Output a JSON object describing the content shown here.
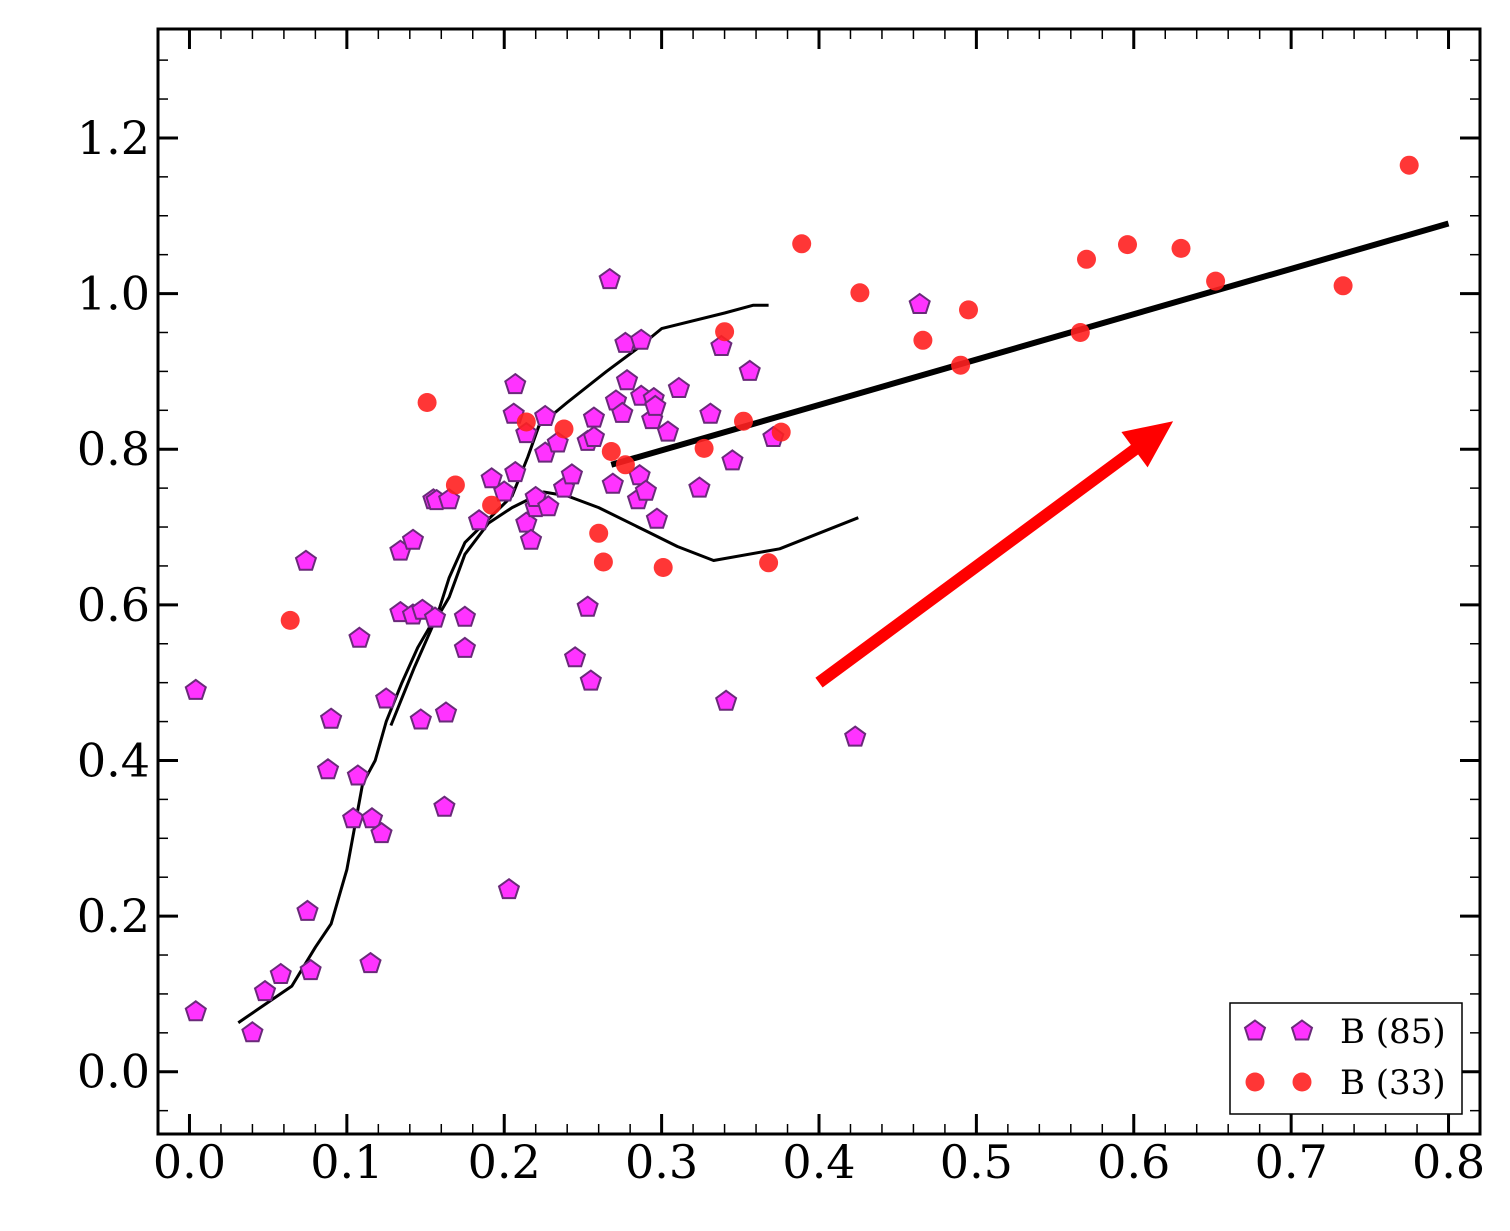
{
  "chart_data": {
    "type": "scatter",
    "xlim": [
      -0.02,
      0.82
    ],
    "ylim": [
      -0.08,
      1.34
    ],
    "x_ticks": [
      0.0,
      0.1,
      0.2,
      0.3,
      0.4,
      0.5,
      0.6,
      0.7,
      0.8
    ],
    "x_tick_labels": [
      "0.0",
      "0.1",
      "0.2",
      "0.3",
      "0.4",
      "0.5",
      "0.6",
      "0.7",
      "0.8"
    ],
    "y_ticks": [
      0.0,
      0.2,
      0.4,
      0.6,
      0.8,
      1.0,
      1.2
    ],
    "y_tick_labels": [
      "0.0",
      "0.2",
      "0.4",
      "0.6",
      "0.8",
      "1.0",
      "1.2"
    ],
    "grid": false,
    "legend_position": "bottom-right",
    "colors": {
      "pentagon_fill": "#ff33ff",
      "pentagon_edge": "#6a2a7a",
      "circle_fill": "#ff2020",
      "line": "#000000",
      "arrow": "#ff0000"
    },
    "series": [
      {
        "name": "B (85)",
        "marker": "pentagon",
        "points": [
          [
            0.004,
            0.49
          ],
          [
            0.004,
            0.077
          ],
          [
            0.04,
            0.05
          ],
          [
            0.048,
            0.103
          ],
          [
            0.058,
            0.125
          ],
          [
            0.074,
            0.656
          ],
          [
            0.075,
            0.206
          ],
          [
            0.077,
            0.13
          ],
          [
            0.088,
            0.388
          ],
          [
            0.09,
            0.453
          ],
          [
            0.104,
            0.325
          ],
          [
            0.107,
            0.38
          ],
          [
            0.108,
            0.557
          ],
          [
            0.115,
            0.139
          ],
          [
            0.116,
            0.325
          ],
          [
            0.122,
            0.306
          ],
          [
            0.125,
            0.479
          ],
          [
            0.134,
            0.669
          ],
          [
            0.134,
            0.59
          ],
          [
            0.142,
            0.587
          ],
          [
            0.142,
            0.683
          ],
          [
            0.147,
            0.452
          ],
          [
            0.148,
            0.593
          ],
          [
            0.155,
            0.735
          ],
          [
            0.156,
            0.583
          ],
          [
            0.157,
            0.734
          ],
          [
            0.162,
            0.34
          ],
          [
            0.163,
            0.461
          ],
          [
            0.165,
            0.735
          ],
          [
            0.175,
            0.584
          ],
          [
            0.175,
            0.544
          ],
          [
            0.184,
            0.708
          ],
          [
            0.192,
            0.762
          ],
          [
            0.2,
            0.745
          ],
          [
            0.203,
            0.234
          ],
          [
            0.206,
            0.845
          ],
          [
            0.207,
            0.883
          ],
          [
            0.207,
            0.77
          ],
          [
            0.214,
            0.705
          ],
          [
            0.214,
            0.82
          ],
          [
            0.217,
            0.683
          ],
          [
            0.22,
            0.725
          ],
          [
            0.22,
            0.738
          ],
          [
            0.226,
            0.842
          ],
          [
            0.226,
            0.795
          ],
          [
            0.228,
            0.726
          ],
          [
            0.234,
            0.808
          ],
          [
            0.238,
            0.75
          ],
          [
            0.243,
            0.767
          ],
          [
            0.245,
            0.532
          ],
          [
            0.253,
            0.597
          ],
          [
            0.253,
            0.81
          ],
          [
            0.255,
            0.502
          ],
          [
            0.257,
            0.84
          ],
          [
            0.257,
            0.815
          ],
          [
            0.267,
            1.018
          ],
          [
            0.269,
            0.755
          ],
          [
            0.271,
            0.862
          ],
          [
            0.275,
            0.846
          ],
          [
            0.277,
            0.936
          ],
          [
            0.278,
            0.888
          ],
          [
            0.285,
            0.735
          ],
          [
            0.286,
            0.766
          ],
          [
            0.287,
            0.868
          ],
          [
            0.287,
            0.94
          ],
          [
            0.29,
            0.746
          ],
          [
            0.294,
            0.838
          ],
          [
            0.295,
            0.865
          ],
          [
            0.296,
            0.855
          ],
          [
            0.297,
            0.71
          ],
          [
            0.304,
            0.822
          ],
          [
            0.311,
            0.878
          ],
          [
            0.324,
            0.75
          ],
          [
            0.331,
            0.845
          ],
          [
            0.338,
            0.932
          ],
          [
            0.341,
            0.476
          ],
          [
            0.345,
            0.785
          ],
          [
            0.356,
            0.9
          ],
          [
            0.371,
            0.815
          ],
          [
            0.423,
            0.43
          ],
          [
            0.464,
            0.986
          ]
        ]
      },
      {
        "name": "B (33)",
        "marker": "circle",
        "points": [
          [
            0.064,
            0.58
          ],
          [
            0.151,
            0.86
          ],
          [
            0.169,
            0.754
          ],
          [
            0.192,
            0.728
          ],
          [
            0.214,
            0.835
          ],
          [
            0.238,
            0.826
          ],
          [
            0.26,
            0.692
          ],
          [
            0.263,
            0.655
          ],
          [
            0.268,
            0.797
          ],
          [
            0.277,
            0.78
          ],
          [
            0.301,
            0.648
          ],
          [
            0.327,
            0.801
          ],
          [
            0.34,
            0.951
          ],
          [
            0.352,
            0.836
          ],
          [
            0.368,
            0.654
          ],
          [
            0.376,
            0.822
          ],
          [
            0.389,
            1.064
          ],
          [
            0.426,
            1.001
          ],
          [
            0.466,
            0.94
          ],
          [
            0.49,
            0.908
          ],
          [
            0.495,
            0.979
          ],
          [
            0.566,
            0.95
          ],
          [
            0.57,
            1.044
          ],
          [
            0.596,
            1.063
          ],
          [
            0.63,
            1.058
          ],
          [
            0.652,
            1.016
          ],
          [
            0.733,
            1.01
          ],
          [
            0.775,
            1.165
          ]
        ]
      }
    ],
    "lines": [
      {
        "width": "thin",
        "points": [
          [
            0.031,
            0.063
          ],
          [
            0.065,
            0.11
          ],
          [
            0.08,
            0.16
          ],
          [
            0.09,
            0.19
          ],
          [
            0.1,
            0.26
          ],
          [
            0.11,
            0.37
          ],
          [
            0.118,
            0.4
          ],
          [
            0.125,
            0.45
          ],
          [
            0.135,
            0.5
          ],
          [
            0.145,
            0.545
          ],
          [
            0.158,
            0.59
          ],
          [
            0.165,
            0.635
          ],
          [
            0.175,
            0.68
          ],
          [
            0.19,
            0.71
          ],
          [
            0.205,
            0.74
          ],
          [
            0.215,
            0.79
          ],
          [
            0.222,
            0.83
          ],
          [
            0.24,
            0.86
          ],
          [
            0.265,
            0.9
          ],
          [
            0.285,
            0.93
          ],
          [
            0.3,
            0.955
          ],
          [
            0.34,
            0.975
          ],
          [
            0.358,
            0.985
          ],
          [
            0.368,
            0.985
          ]
        ]
      },
      {
        "width": "thin",
        "points": [
          [
            0.128,
            0.445
          ],
          [
            0.135,
            0.48
          ],
          [
            0.143,
            0.52
          ],
          [
            0.155,
            0.575
          ],
          [
            0.165,
            0.61
          ],
          [
            0.175,
            0.665
          ],
          [
            0.19,
            0.705
          ],
          [
            0.205,
            0.725
          ],
          [
            0.225,
            0.745
          ],
          [
            0.24,
            0.74
          ],
          [
            0.26,
            0.725
          ],
          [
            0.29,
            0.695
          ],
          [
            0.31,
            0.675
          ],
          [
            0.333,
            0.657
          ],
          [
            0.375,
            0.672
          ],
          [
            0.425,
            0.712
          ]
        ]
      },
      {
        "width": "thick",
        "points": [
          [
            0.268,
            0.78
          ],
          [
            0.8,
            1.09
          ]
        ]
      }
    ],
    "arrow": {
      "from": [
        0.4,
        0.5
      ],
      "to": [
        0.625,
        0.836
      ]
    }
  }
}
